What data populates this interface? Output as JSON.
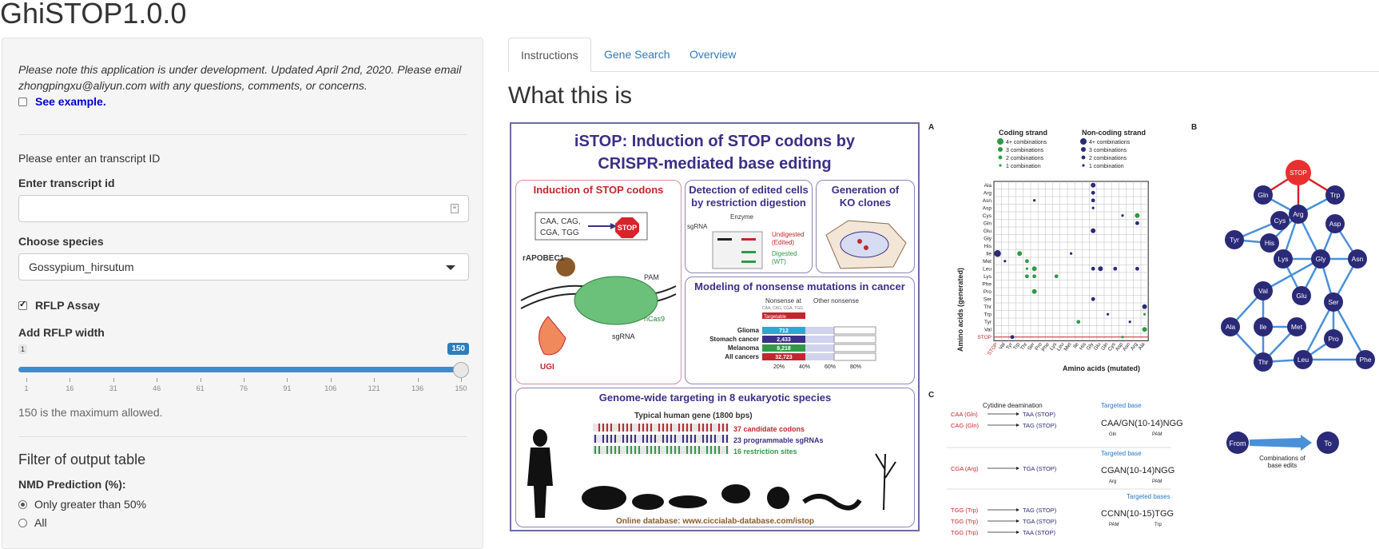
{
  "app": {
    "title": "GhiSTOP1.0.0"
  },
  "sidebar": {
    "note": "Please note this application is under development. Updated April 2nd, 2020. Please email zhongpingxu@aliyun.com with any questions, comments, or concerns.",
    "see_example": "See example.",
    "transcript_prompt": "Please enter an transcript ID",
    "transcript_label": "Enter transcript id",
    "transcript_value": "",
    "species_label": "Choose species",
    "species_value": "Gossypium_hirsutum",
    "rflp_label": "RFLP Assay",
    "rflp_checked": true,
    "rflp_width_label": "Add RFLP width",
    "slider": {
      "min": "1",
      "max": "150",
      "value": 150,
      "ticks": [
        "1",
        "16",
        "31",
        "46",
        "61",
        "76",
        "91",
        "106",
        "121",
        "136",
        "150"
      ]
    },
    "max_note": "150 is the maximum allowed.",
    "filter_title": "Filter of output table",
    "nmd_label": "NMD Prediction (%):",
    "nmd_options": [
      "Only greater than 50%",
      "All"
    ],
    "nmd_selected": 0
  },
  "tabs": [
    {
      "label": "Instructions",
      "active": true
    },
    {
      "label": "Gene Search",
      "active": false
    },
    {
      "label": "Overview",
      "active": false
    }
  ],
  "main": {
    "heading": "What this is",
    "figure": {
      "title_line1": "iSTOP: Induction of STOP codons by",
      "title_line2": "CRISPR-mediated base editing",
      "panel1_title": "Induction of STOP codons",
      "codons": [
        "CAA, CAG,",
        "CGA, TGG"
      ],
      "stop_label": "STOP",
      "rapobec": "rAPOBEC1",
      "pam": "PAM",
      "ncas9": "nCas9",
      "sgrna": "sgRNA",
      "ugi": "UGI",
      "panel2_title_1": "Detection of edited cells",
      "panel2_title_2": "by restriction digestion",
      "enzyme": "Enzyme",
      "sgrna_label": "sgRNA",
      "undigested": "Undigested",
      "edited": "(Edited)",
      "digested": "Digested",
      "wt": "(WT)",
      "panel3_title_1": "Generation of",
      "panel3_title_2": "KO clones",
      "panel4_title": "Modeling of nonsense mutations in cancer",
      "nonsense_at": "Nonsense at",
      "nonsense_at_sub": "CAA, CAG, CGA, TGG",
      "other_nonsense": "Other nonsense",
      "targetable": "Targetable",
      "cancers": [
        {
          "name": "Glioma",
          "count": "712"
        },
        {
          "name": "Stomach cancer",
          "count": "2,433"
        },
        {
          "name": "Melanoma",
          "count": "8,218"
        },
        {
          "name": "All cancers",
          "count": "32,723"
        }
      ],
      "pct_ticks": [
        "20%",
        "40%",
        "60%",
        "80%"
      ],
      "panel5_title": "Genome-wide targeting in 8 eukaryotic species",
      "typical_gene": "Typical human gene (1800 bps)",
      "candidate": "37 candidate codons",
      "programmable": "23 programmable sgRNAs",
      "restriction": "16 restriction sites",
      "online": "Online database: www.ciccialab-database.com/istop"
    },
    "figure_right": {
      "label_a": "A",
      "label_b": "B",
      "label_c": "C",
      "coding_strand": "Coding strand",
      "noncoding_strand": "Non-coding strand",
      "legend": [
        "4+ combinations",
        "3 combinations",
        "2 combinations",
        "1 combination"
      ],
      "y_axis": "Amino acids (generated)",
      "x_axis": "Amino acids (mutated)",
      "y_labels": [
        "Ala",
        "Arg",
        "Asn",
        "Asp",
        "Cys",
        "Gln",
        "Glu",
        "Gly",
        "His",
        "Ile",
        "Met",
        "Leu",
        "Lys",
        "Phe",
        "Pro",
        "Ser",
        "Thr",
        "Trp",
        "Tyr",
        "Val",
        "STOP"
      ],
      "x_labels": [
        "STOP",
        "Val",
        "Tyr",
        "Trp",
        "Thr",
        "Ser",
        "Pro",
        "Phe",
        "Lys",
        "Leu",
        "Met",
        "Ile",
        "His",
        "Gly",
        "Glu",
        "Gln",
        "Cys",
        "Asp",
        "Asn",
        "Arg",
        "Ala"
      ],
      "network_nodes": [
        "STOP",
        "Gln",
        "Trp",
        "Arg",
        "Cys",
        "Asp",
        "Tyr",
        "His",
        "Lys",
        "Gly",
        "Asn",
        "Glu",
        "Val",
        "Ser",
        "Ala",
        "Ile",
        "Met",
        "Pro",
        "Thr",
        "Leu",
        "Phe"
      ],
      "from": "From",
      "to": "To",
      "combinations": "Combinations of",
      "base_edits": "base edits",
      "cytidine": "Cytidine deamination",
      "targeted_base": "Targeted base",
      "targeted_bases": "Targeted bases",
      "c_rows": [
        {
          "from": "CAA (Gln)",
          "to": "TAA (STOP)"
        },
        {
          "from": "CAG (Gln)",
          "to": "TAG (STOP)"
        },
        {
          "from": "CGA (Arg)",
          "to": "TGA (STOP)"
        },
        {
          "from": "TGG (Trp)",
          "to": "TAG (STOP)"
        },
        {
          "from": "TGG (Trp)",
          "to": "TGA (STOP)"
        },
        {
          "from": "TGG (Trp)",
          "to": "TAA (STOP)"
        }
      ],
      "seq1": "CAA/GN(10-14)NGG",
      "seq2": "CGAN(10-14)NGG",
      "seq3": "CCNN(10-15)TGG",
      "gln": "Gln",
      "arg": "Arg",
      "trp": "Trp",
      "pam": "PAM"
    }
  }
}
